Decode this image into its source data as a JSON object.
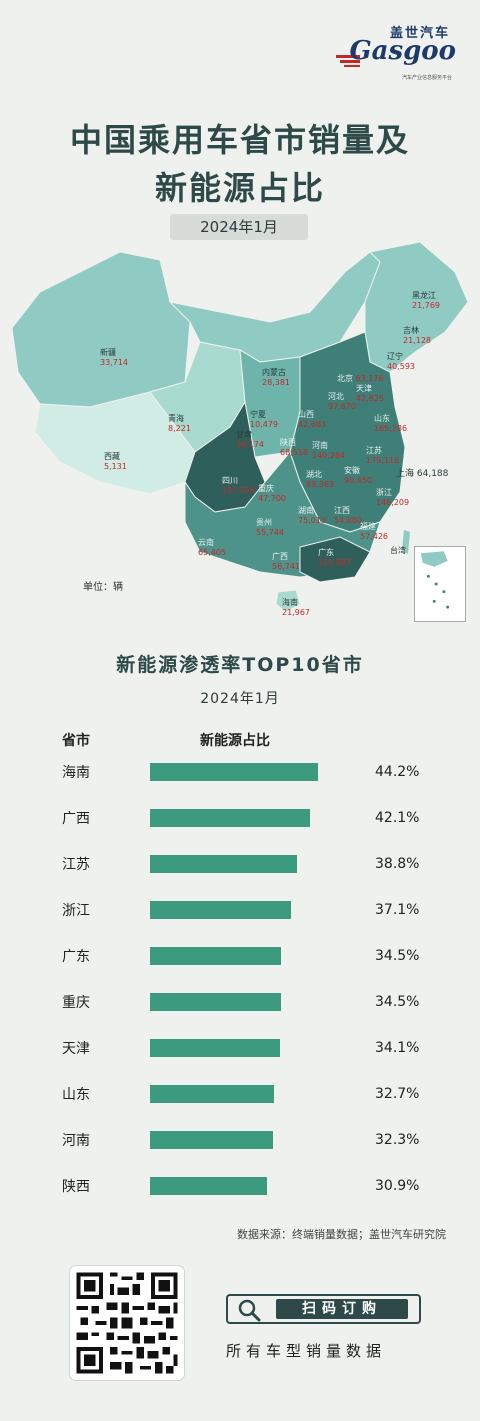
{
  "brand": {
    "name_cn": "盖世汽车",
    "name_en": "Gasgoo",
    "tagline": "汽车产业信息服务平台"
  },
  "title_line1": "中国乘用车省市销量及",
  "title_line2": "新能源占比",
  "date": "2024年1月",
  "map": {
    "unit": "单位：辆",
    "labels": [
      {
        "name": "黑龙江",
        "value": "21,769"
      },
      {
        "name": "吉林",
        "value": "21,128"
      },
      {
        "name": "辽宁",
        "value": "40,593"
      },
      {
        "name": "新疆",
        "value": "33,714"
      },
      {
        "name": "内蒙古",
        "value": "28,381"
      },
      {
        "name": "北京",
        "value": "63,176"
      },
      {
        "name": "天津",
        "value": "42,625"
      },
      {
        "name": "河北",
        "value": "97,670"
      },
      {
        "name": "宁夏",
        "value": "10,479"
      },
      {
        "name": "山西",
        "value": "42,683"
      },
      {
        "name": "山东",
        "value": "165,286"
      },
      {
        "name": "甘肃",
        "value": "36,174"
      },
      {
        "name": "青海",
        "value": "8,221"
      },
      {
        "name": "陕西",
        "value": "68,518"
      },
      {
        "name": "河南",
        "value": "140,264"
      },
      {
        "name": "江苏",
        "value": "179,116"
      },
      {
        "name": "西藏",
        "value": "5,131"
      },
      {
        "name": "四川",
        "value": "157,209"
      },
      {
        "name": "重庆",
        "value": "47,700"
      },
      {
        "name": "湖北",
        "value": "89,363"
      },
      {
        "name": "安徽",
        "value": "90,450"
      },
      {
        "name": "上海",
        "value": "64,188"
      },
      {
        "name": "浙江",
        "value": "146,209"
      },
      {
        "name": "贵州",
        "value": "55,744"
      },
      {
        "name": "湖南",
        "value": "75,013"
      },
      {
        "name": "江西",
        "value": "54,880"
      },
      {
        "name": "福建",
        "value": "57,426"
      },
      {
        "name": "云南",
        "value": "65,405"
      },
      {
        "name": "广西",
        "value": "56,741"
      },
      {
        "name": "广东",
        "value": "219,887"
      },
      {
        "name": "台湾",
        "value": ""
      },
      {
        "name": "海南",
        "value": "21,967"
      }
    ]
  },
  "chart_data": {
    "type": "bar",
    "title": "新能源渗透率TOP10省市",
    "subtitle": "2024年1月",
    "column_headers": [
      "省市",
      "新能源占比"
    ],
    "categories": [
      "海南",
      "广西",
      "江苏",
      "浙江",
      "广东",
      "重庆",
      "天津",
      "山东",
      "河南",
      "陕西"
    ],
    "values": [
      44.2,
      42.1,
      38.8,
      37.1,
      34.5,
      34.5,
      34.1,
      32.7,
      32.3,
      30.9
    ],
    "value_labels": [
      "44.2%",
      "42.1%",
      "38.8%",
      "37.1%",
      "34.5%",
      "34.5%",
      "34.1%",
      "32.7%",
      "32.3%",
      "30.9%"
    ],
    "orientation": "horizontal",
    "color": "#3c9a7e",
    "xlim": [
      0,
      50
    ]
  },
  "source": "数据来源：终端销量数据；盖世汽车研究院",
  "order": {
    "button": "扫码订购",
    "subtitle": "所有车型销量数据"
  },
  "colors": {
    "accent": "#2d4a48",
    "bar": "#3c9a7e",
    "value_red": "#c62828"
  }
}
